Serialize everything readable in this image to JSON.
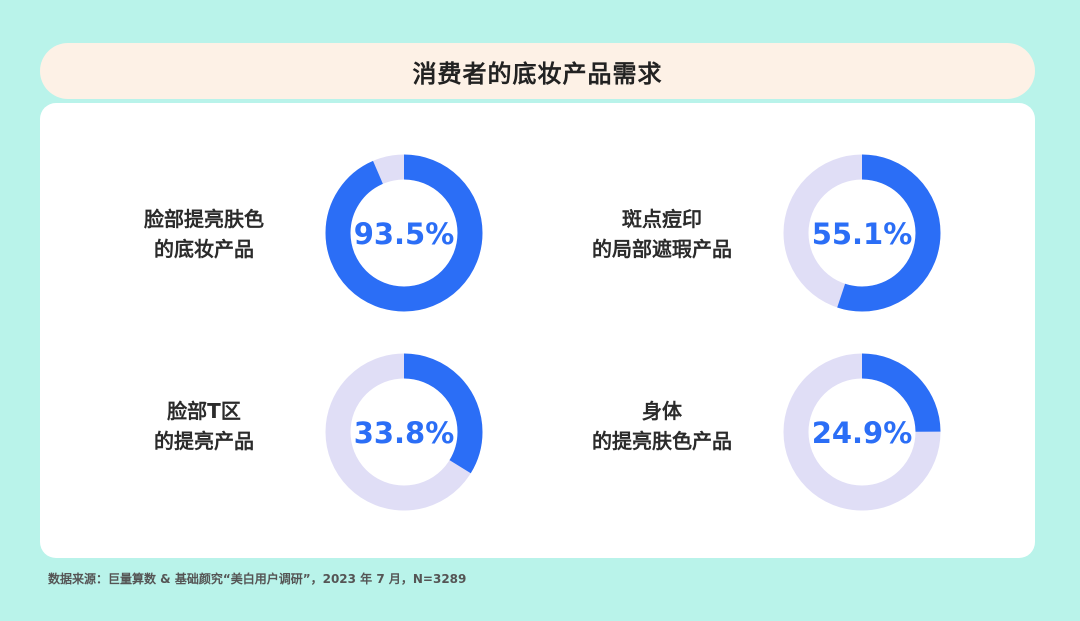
{
  "title": "消费者的底妆产品需求",
  "chart_data": {
    "type": "pie",
    "subtype": "donut",
    "colors": {
      "filled": "#2b6ef6",
      "remainder": "#e0def6",
      "value_text": "#2b6ef6"
    },
    "items": [
      {
        "label_lines": [
          "脸部提亮肤色",
          "的底妆产品"
        ],
        "value": 93.5,
        "value_label": "93.5%"
      },
      {
        "label_lines": [
          "斑点痘印",
          "的局部遮瑕产品"
        ],
        "value": 55.1,
        "value_label": "55.1%"
      },
      {
        "label_lines": [
          "脸部T区",
          "的提亮产品"
        ],
        "value": 33.8,
        "value_label": "33.8%"
      },
      {
        "label_lines": [
          "身体",
          "的提亮肤色产品"
        ],
        "value": 24.9,
        "value_label": "24.9%"
      }
    ]
  },
  "source": "数据来源：巨量算数 & 基础颜究“美白用户调研”，2023 年 7 月，N=3289"
}
